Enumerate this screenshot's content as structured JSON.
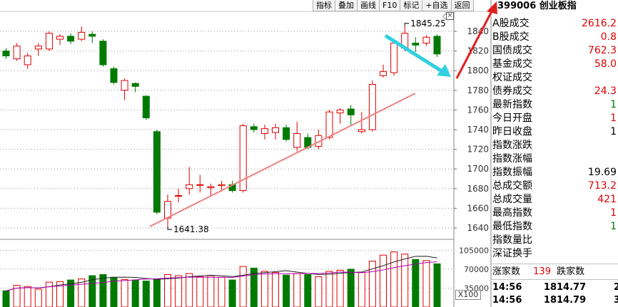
{
  "toolbar": {
    "items": [
      "指标",
      "叠加",
      "画线",
      "F10",
      "标记",
      "+自选",
      "返回"
    ]
  },
  "header": {
    "code_title": "399006 创业板指"
  },
  "annotations": {
    "high_label": "1845.25",
    "low_label": "1641.38"
  },
  "price_axis": {
    "ticks": [
      "1840",
      "1820",
      "1800",
      "1780",
      "1760",
      "1740",
      "1720",
      "1700",
      "1680",
      "1660",
      "1640"
    ]
  },
  "volume_axis": {
    "ticks": [
      "105000",
      "70000",
      "35000"
    ],
    "scale_label": "X100"
  },
  "panel": {
    "rows": [
      {
        "label": "A股成交",
        "value": "2616.2",
        "color": "red"
      },
      {
        "label": "B股成交",
        "value": "0.8",
        "color": "red"
      },
      {
        "label": "国债成交",
        "value": "762.3",
        "color": "red"
      },
      {
        "label": "基金成交",
        "value": "58.0",
        "color": "red"
      },
      {
        "label": "权证成交",
        "value": "",
        "color": "red"
      },
      {
        "label": "债券成交",
        "value": "24.3",
        "color": "red"
      },
      {
        "label": "最新指数",
        "value": "1",
        "color": "green"
      },
      {
        "label": "今日开盘",
        "value": "1",
        "color": "red"
      },
      {
        "label": "昨日收盘",
        "value": "1",
        "color": "black"
      },
      {
        "label": "指数涨跌",
        "value": "",
        "color": "red"
      },
      {
        "label": "指数涨幅",
        "value": "",
        "color": "red"
      },
      {
        "label": "指数振幅",
        "value": "19.69",
        "color": "black"
      },
      {
        "label": "总成交额",
        "value": "713.2",
        "color": "red"
      },
      {
        "label": "总成交量",
        "value": "421",
        "color": "red"
      },
      {
        "label": "最高指数",
        "value": "1",
        "color": "red"
      },
      {
        "label": "最低指数",
        "value": "1",
        "color": "green"
      },
      {
        "label": "指数量比",
        "value": "",
        "color": "red"
      },
      {
        "label": "深证换手",
        "value": "",
        "color": "red"
      }
    ],
    "advance_label": "涨家数",
    "advance_value": "139",
    "decline_label": "跌家数",
    "ticks": [
      {
        "time": "14:56",
        "price": "1814.77",
        "vol": "2"
      },
      {
        "time": "14:56",
        "price": "1814.79",
        "vol": "3"
      }
    ]
  },
  "colors": {
    "up": "#e00000",
    "down": "#007a00",
    "grid": "#9a9a9a",
    "trend": "#f08080",
    "arrow_cyan": "#30d0e0",
    "arrow_red": "#e02020"
  },
  "chart_data": {
    "type": "candlestick",
    "ylim": [
      1630,
      1850
    ],
    "candles": [
      {
        "o": 1820,
        "c": 1815,
        "h": 1823,
        "l": 1812
      },
      {
        "o": 1812,
        "c": 1825,
        "h": 1828,
        "l": 1810
      },
      {
        "o": 1806,
        "c": 1815,
        "h": 1818,
        "l": 1802
      },
      {
        "o": 1822,
        "c": 1825,
        "h": 1828,
        "l": 1815
      },
      {
        "o": 1822,
        "c": 1838,
        "h": 1840,
        "l": 1820
      },
      {
        "o": 1832,
        "c": 1835,
        "h": 1837,
        "l": 1826
      },
      {
        "o": 1835,
        "c": 1830,
        "h": 1838,
        "l": 1827
      },
      {
        "o": 1832,
        "c": 1839,
        "h": 1845,
        "l": 1830
      },
      {
        "o": 1837,
        "c": 1835,
        "h": 1840,
        "l": 1828
      },
      {
        "o": 1830,
        "c": 1806,
        "h": 1832,
        "l": 1804
      },
      {
        "o": 1802,
        "c": 1788,
        "h": 1804,
        "l": 1786
      },
      {
        "o": 1780,
        "c": 1790,
        "h": 1792,
        "l": 1770
      },
      {
        "o": 1787,
        "c": 1784,
        "h": 1788,
        "l": 1778
      },
      {
        "o": 1774,
        "c": 1752,
        "h": 1775,
        "l": 1750
      },
      {
        "o": 1738,
        "c": 1656,
        "h": 1740,
        "l": 1654
      },
      {
        "o": 1650,
        "c": 1667,
        "h": 1674,
        "l": 1641.38
      },
      {
        "o": 1673,
        "c": 1673,
        "h": 1680,
        "l": 1666
      },
      {
        "o": 1680,
        "c": 1684,
        "h": 1702,
        "l": 1674
      },
      {
        "o": 1684,
        "c": 1684,
        "h": 1694,
        "l": 1676
      },
      {
        "o": 1681,
        "c": 1682,
        "h": 1685,
        "l": 1672
      },
      {
        "o": 1683,
        "c": 1684,
        "h": 1688,
        "l": 1677
      },
      {
        "o": 1684,
        "c": 1678,
        "h": 1688,
        "l": 1676
      },
      {
        "o": 1678,
        "c": 1744,
        "h": 1746,
        "l": 1676
      },
      {
        "o": 1743,
        "c": 1740,
        "h": 1746,
        "l": 1737
      },
      {
        "o": 1736,
        "c": 1741,
        "h": 1745,
        "l": 1730
      },
      {
        "o": 1737,
        "c": 1742,
        "h": 1746,
        "l": 1730
      },
      {
        "o": 1742,
        "c": 1730,
        "h": 1745,
        "l": 1728
      },
      {
        "o": 1722,
        "c": 1736,
        "h": 1748,
        "l": 1718
      },
      {
        "o": 1732,
        "c": 1722,
        "h": 1736,
        "l": 1720
      },
      {
        "o": 1723,
        "c": 1734,
        "h": 1740,
        "l": 1720
      },
      {
        "o": 1732,
        "c": 1758,
        "h": 1760,
        "l": 1730
      },
      {
        "o": 1757,
        "c": 1760,
        "h": 1762,
        "l": 1746
      },
      {
        "o": 1761,
        "c": 1755,
        "h": 1765,
        "l": 1744
      },
      {
        "o": 1738,
        "c": 1740,
        "h": 1758,
        "l": 1736
      },
      {
        "o": 1740,
        "c": 1786,
        "h": 1790,
        "l": 1738
      },
      {
        "o": 1795,
        "c": 1799,
        "h": 1806,
        "l": 1793
      },
      {
        "o": 1798,
        "c": 1828,
        "h": 1832,
        "l": 1795
      },
      {
        "o": 1823,
        "c": 1838,
        "h": 1845.25,
        "l": 1820
      },
      {
        "o": 1828,
        "c": 1826,
        "h": 1834,
        "l": 1819
      },
      {
        "o": 1828,
        "c": 1834,
        "h": 1836,
        "l": 1825
      },
      {
        "o": 1835,
        "c": 1817,
        "h": 1837,
        "l": 1814
      }
    ],
    "volumes": [
      30000,
      40000,
      38000,
      33000,
      46000,
      47000,
      50000,
      52000,
      58000,
      60000,
      55000,
      51000,
      50000,
      48000,
      52000,
      60000,
      58000,
      62000,
      56000,
      58000,
      55000,
      50000,
      75000,
      72000,
      66000,
      64000,
      59000,
      62000,
      60000,
      56000,
      66000,
      68000,
      70000,
      64000,
      85000,
      96000,
      102000,
      98000,
      88000,
      86000,
      80000
    ]
  }
}
